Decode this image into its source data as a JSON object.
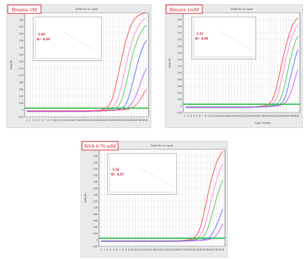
{
  "chart_data": [
    {
      "type": "line",
      "condition_label": "Betaine 1M",
      "title": "Delta Rn vs Cycle",
      "ylabel": "Delta Rn",
      "xlabel": "",
      "x_ticks": [
        "1",
        "2",
        "3",
        "4",
        "5",
        "6",
        "7",
        "8",
        "9",
        "10",
        "11",
        "12",
        "13",
        "14",
        "15",
        "16",
        "17",
        "18",
        "19",
        "20",
        "21",
        "22",
        "23",
        "24",
        "25",
        "26",
        "27",
        "28",
        "29",
        "30",
        "31",
        "32",
        "33",
        "34",
        "35",
        "36",
        "37",
        "38",
        "39",
        "40"
      ],
      "y_ticks": [
        "2.80",
        "2.60",
        "2.40",
        "2.20",
        "2.00",
        "1.80",
        "1.60",
        "1.40",
        "1.20",
        "1.00",
        "0.80",
        "0.60",
        "0.40",
        "0.20",
        "0",
        "-0.20"
      ],
      "ylim": [
        -0.2,
        2.8
      ],
      "threshold": 0.05,
      "series": [
        {
          "color": "#ff3b3b",
          "values": [
            -0.05,
            -0.05,
            -0.05,
            -0.05,
            -0.05,
            -0.05,
            -0.05,
            -0.05,
            -0.05,
            -0.05,
            -0.05,
            -0.05,
            -0.05,
            -0.05,
            -0.05,
            -0.05,
            -0.05,
            -0.05,
            -0.04,
            -0.04,
            -0.03,
            -0.03,
            -0.02,
            -0.01,
            0.0,
            0.02,
            0.06,
            0.15,
            0.35,
            0.7,
            1.1,
            1.5,
            1.9,
            2.2,
            2.45,
            2.6,
            2.7,
            2.75,
            2.78,
            2.8
          ]
        },
        {
          "color": "#ff7fd4",
          "values": [
            -0.03,
            -0.03,
            -0.03,
            -0.03,
            -0.03,
            -0.03,
            -0.03,
            -0.03,
            -0.03,
            -0.03,
            -0.03,
            -0.03,
            -0.03,
            -0.03,
            -0.03,
            -0.03,
            -0.03,
            -0.03,
            -0.03,
            -0.03,
            -0.02,
            -0.02,
            -0.02,
            -0.01,
            0.0,
            0.0,
            0.01,
            0.03,
            0.07,
            0.18,
            0.4,
            0.75,
            1.15,
            1.55,
            1.9,
            2.15,
            2.35,
            2.5,
            2.6,
            2.65
          ]
        },
        {
          "color": "#39c84a",
          "values": [
            -0.04,
            -0.04,
            -0.04,
            -0.04,
            -0.04,
            -0.04,
            -0.04,
            -0.04,
            -0.04,
            -0.04,
            -0.04,
            -0.04,
            -0.04,
            -0.04,
            -0.04,
            -0.04,
            -0.04,
            -0.04,
            -0.04,
            -0.04,
            -0.04,
            -0.03,
            -0.03,
            -0.03,
            -0.02,
            -0.02,
            -0.01,
            0.0,
            0.02,
            0.05,
            0.12,
            0.3,
            0.6,
            1.0,
            1.4,
            1.75,
            2.0,
            2.2,
            2.35,
            2.45
          ]
        },
        {
          "color": "#4a66ff",
          "values": [
            -0.05,
            -0.05,
            -0.05,
            -0.05,
            -0.05,
            -0.05,
            -0.05,
            -0.05,
            -0.05,
            -0.05,
            -0.05,
            -0.05,
            -0.05,
            -0.05,
            -0.05,
            -0.05,
            -0.05,
            -0.05,
            -0.05,
            -0.05,
            -0.05,
            -0.04,
            -0.04,
            -0.04,
            -0.04,
            -0.03,
            -0.03,
            -0.02,
            -0.01,
            0.0,
            0.02,
            0.05,
            0.12,
            0.3,
            0.6,
            0.95,
            1.3,
            1.6,
            1.85,
            2.0
          ]
        },
        {
          "color": "#c84aff",
          "values": [
            -0.04,
            -0.04,
            -0.04,
            -0.04,
            -0.04,
            -0.04,
            -0.04,
            -0.04,
            -0.04,
            -0.04,
            -0.04,
            -0.04,
            -0.04,
            -0.04,
            -0.04,
            -0.04,
            -0.04,
            -0.04,
            -0.04,
            -0.04,
            -0.04,
            -0.04,
            -0.04,
            -0.03,
            -0.03,
            -0.03,
            -0.03,
            -0.02,
            -0.02,
            -0.01,
            0.0,
            0.01,
            0.03,
            0.07,
            0.15,
            0.3,
            0.5,
            0.75,
            1.0,
            1.2
          ]
        },
        {
          "color": "#ff5252",
          "values": [
            -0.03,
            -0.03,
            -0.03,
            -0.03,
            -0.03,
            -0.03,
            -0.03,
            -0.03,
            -0.03,
            -0.03,
            -0.03,
            -0.03,
            -0.03,
            -0.03,
            -0.03,
            -0.03,
            -0.03,
            -0.03,
            -0.03,
            -0.03,
            -0.03,
            -0.03,
            -0.03,
            -0.03,
            -0.03,
            -0.02,
            -0.02,
            -0.02,
            -0.02,
            -0.01,
            -0.01,
            0.0,
            0.01,
            0.02,
            0.05,
            0.1,
            0.18,
            0.3,
            0.45,
            0.6
          ]
        }
      ],
      "inset": {
        "slope_label": "-3.44",
        "r2_label": "R²- 0.94"
      }
    },
    {
      "type": "line",
      "condition_label": "Betaine 1mM",
      "title": "Delta Rn vs Cycle",
      "ylabel": "Delta Rn",
      "xlabel": "Cycle Number",
      "x_ticks": [
        "1",
        "2",
        "3",
        "4",
        "5",
        "6",
        "7",
        "8",
        "9",
        "10",
        "11",
        "12",
        "13",
        "14",
        "15",
        "16",
        "17",
        "18",
        "19",
        "20",
        "21",
        "22",
        "23",
        "24",
        "25",
        "26",
        "27",
        "28",
        "29",
        "30",
        "31",
        "32",
        "33",
        "34",
        "35",
        "36",
        "37",
        "38",
        "39",
        "40"
      ],
      "y_ticks": [
        "2.80",
        "2.60",
        "2.40",
        "2.20",
        "2.00",
        "1.80",
        "1.60",
        "1.40",
        "1.20",
        "1.00",
        "0.80",
        "0.60",
        "0.40",
        "0.20",
        "0",
        "-0.20"
      ],
      "ylim": [
        -0.2,
        2.8
      ],
      "threshold": 0.05,
      "series": [
        {
          "color": "#ff3b3b",
          "values": [
            -0.05,
            -0.05,
            -0.05,
            -0.05,
            -0.05,
            -0.05,
            -0.05,
            -0.05,
            -0.05,
            -0.05,
            -0.05,
            -0.05,
            -0.05,
            -0.05,
            -0.05,
            -0.05,
            -0.05,
            -0.05,
            -0.05,
            -0.05,
            -0.05,
            -0.05,
            -0.04,
            -0.04,
            -0.03,
            -0.02,
            -0.01,
            0.0,
            0.02,
            0.06,
            0.15,
            0.35,
            0.7,
            1.1,
            1.5,
            1.85,
            2.15,
            2.4,
            2.55,
            2.65
          ]
        },
        {
          "color": "#ff7fd4",
          "values": [
            -0.04,
            -0.04,
            -0.04,
            -0.04,
            -0.04,
            -0.04,
            -0.04,
            -0.04,
            -0.04,
            -0.04,
            -0.04,
            -0.04,
            -0.04,
            -0.04,
            -0.04,
            -0.04,
            -0.04,
            -0.04,
            -0.04,
            -0.04,
            -0.04,
            -0.04,
            -0.04,
            -0.03,
            -0.03,
            -0.03,
            -0.02,
            -0.01,
            0.0,
            0.02,
            0.05,
            0.12,
            0.3,
            0.65,
            1.05,
            1.45,
            1.8,
            2.1,
            2.3,
            2.45
          ]
        },
        {
          "color": "#39c84a",
          "values": [
            -0.03,
            -0.03,
            -0.03,
            -0.03,
            -0.03,
            -0.03,
            -0.03,
            -0.03,
            -0.03,
            -0.03,
            -0.03,
            -0.03,
            -0.03,
            -0.03,
            -0.03,
            -0.03,
            -0.03,
            -0.03,
            -0.03,
            -0.03,
            -0.03,
            -0.03,
            -0.03,
            -0.03,
            -0.03,
            -0.02,
            -0.02,
            -0.02,
            -0.01,
            0.0,
            0.01,
            0.03,
            0.08,
            0.2,
            0.45,
            0.85,
            1.25,
            1.6,
            1.9,
            2.1
          ]
        },
        {
          "color": "#4a66ff",
          "values": [
            -0.05,
            -0.05,
            -0.05,
            -0.05,
            -0.05,
            -0.05,
            -0.05,
            -0.05,
            -0.05,
            -0.05,
            -0.05,
            -0.05,
            -0.05,
            -0.05,
            -0.05,
            -0.05,
            -0.05,
            -0.05,
            -0.05,
            -0.05,
            -0.05,
            -0.05,
            -0.05,
            -0.05,
            -0.04,
            -0.04,
            -0.04,
            -0.03,
            -0.03,
            -0.02,
            -0.01,
            0.0,
            0.02,
            0.06,
            0.15,
            0.35,
            0.7,
            1.05,
            1.4,
            1.7
          ]
        },
        {
          "color": "#c84aff",
          "values": [
            -0.04,
            -0.04,
            -0.04,
            -0.04,
            -0.04,
            -0.04,
            -0.04,
            -0.04,
            -0.04,
            -0.04,
            -0.04,
            -0.04,
            -0.04,
            -0.04,
            -0.04,
            -0.04,
            -0.04,
            -0.04,
            -0.04,
            -0.04,
            -0.04,
            -0.04,
            -0.04,
            -0.04,
            -0.04,
            -0.04,
            -0.03,
            -0.03,
            -0.03,
            -0.02,
            -0.02,
            -0.01,
            0.0,
            0.02,
            0.05,
            0.12,
            0.28,
            0.5,
            0.8,
            1.1
          ]
        }
      ],
      "inset": {
        "slope_label": "-3.22",
        "r2_label": "R²- 0.96"
      }
    },
    {
      "type": "line",
      "condition_label": "BSA 0.76 mM",
      "title": "Delta Rn vs Cycle",
      "ylabel": "Delta Rn",
      "xlabel": "",
      "x_ticks": [
        "1",
        "2",
        "3",
        "4",
        "5",
        "6",
        "7",
        "8",
        "9",
        "10",
        "11",
        "12",
        "13",
        "14",
        "15",
        "16",
        "17",
        "18",
        "19",
        "20",
        "21",
        "22",
        "23",
        "24",
        "25",
        "26",
        "27",
        "28",
        "29",
        "30",
        "31",
        "32",
        "33",
        "34",
        "35",
        "36",
        "37",
        "38",
        "39",
        "40"
      ],
      "y_ticks": [
        "2.80",
        "2.60",
        "2.40",
        "2.20",
        "2.00",
        "1.80",
        "1.60",
        "1.40",
        "1.20",
        "1.00",
        "0.80",
        "0.60",
        "0.40",
        "0.20",
        "0",
        "-0.20"
      ],
      "ylim": [
        -0.2,
        2.8
      ],
      "threshold": 0.05,
      "series": [
        {
          "color": "#ff3b3b",
          "values": [
            -0.05,
            -0.05,
            -0.05,
            -0.05,
            -0.05,
            -0.05,
            -0.05,
            -0.05,
            -0.05,
            -0.05,
            -0.05,
            -0.05,
            -0.05,
            -0.05,
            -0.05,
            -0.05,
            -0.05,
            -0.05,
            -0.05,
            -0.05,
            -0.05,
            -0.05,
            -0.05,
            -0.04,
            -0.04,
            -0.03,
            -0.02,
            -0.01,
            0.0,
            0.03,
            0.08,
            0.2,
            0.45,
            0.85,
            1.3,
            1.75,
            2.1,
            2.4,
            2.6,
            2.75
          ]
        },
        {
          "color": "#ff7fd4",
          "values": [
            -0.04,
            -0.04,
            -0.04,
            -0.04,
            -0.04,
            -0.04,
            -0.04,
            -0.04,
            -0.04,
            -0.04,
            -0.04,
            -0.04,
            -0.04,
            -0.04,
            -0.04,
            -0.04,
            -0.04,
            -0.04,
            -0.04,
            -0.04,
            -0.04,
            -0.04,
            -0.04,
            -0.04,
            -0.04,
            -0.03,
            -0.03,
            -0.02,
            -0.01,
            0.0,
            0.02,
            0.06,
            0.15,
            0.35,
            0.7,
            1.1,
            1.5,
            1.85,
            2.15,
            2.35
          ]
        },
        {
          "color": "#39c84a",
          "values": [
            -0.03,
            -0.03,
            -0.03,
            -0.03,
            -0.03,
            -0.03,
            -0.03,
            -0.03,
            -0.03,
            -0.03,
            -0.03,
            -0.03,
            -0.03,
            -0.03,
            -0.03,
            -0.03,
            -0.03,
            -0.03,
            -0.03,
            -0.03,
            -0.03,
            -0.03,
            -0.03,
            -0.03,
            -0.03,
            -0.03,
            -0.02,
            -0.02,
            -0.02,
            -0.01,
            0.0,
            0.02,
            0.05,
            0.12,
            0.3,
            0.6,
            0.95,
            1.3,
            1.6,
            1.85
          ]
        },
        {
          "color": "#4a66ff",
          "values": [
            -0.05,
            -0.05,
            -0.05,
            -0.05,
            -0.05,
            -0.05,
            -0.05,
            -0.05,
            -0.05,
            -0.05,
            -0.05,
            -0.05,
            -0.05,
            -0.05,
            -0.05,
            -0.05,
            -0.05,
            -0.05,
            -0.05,
            -0.05,
            -0.05,
            -0.05,
            -0.05,
            -0.05,
            -0.05,
            -0.05,
            -0.04,
            -0.04,
            -0.04,
            -0.03,
            -0.03,
            -0.02,
            -0.01,
            0.01,
            0.04,
            0.1,
            0.25,
            0.45,
            0.7,
            0.95
          ]
        },
        {
          "color": "#c84aff",
          "values": [
            -0.04,
            -0.04,
            -0.04,
            -0.04,
            -0.04,
            -0.04,
            -0.04,
            -0.04,
            -0.04,
            -0.04,
            -0.04,
            -0.04,
            -0.04,
            -0.04,
            -0.04,
            -0.04,
            -0.04,
            -0.04,
            -0.04,
            -0.04,
            -0.04,
            -0.04,
            -0.04,
            -0.04,
            -0.04,
            -0.04,
            -0.04,
            -0.04,
            -0.03,
            -0.03,
            -0.03,
            -0.02,
            -0.02,
            -0.01,
            0.0,
            0.02,
            0.06,
            0.15,
            0.3,
            0.5
          ]
        }
      ],
      "inset": {
        "slope_label": "-3.56",
        "r2_label": "R²- 0.97"
      }
    }
  ]
}
